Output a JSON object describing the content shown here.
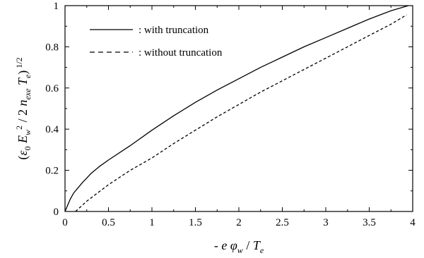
{
  "chart_data": {
    "type": "line",
    "xlabel": {
      "parts": [
        {
          "t": "- ",
          "style": "normal"
        },
        {
          "t": "e",
          "style": "italic"
        },
        {
          "t": " φ",
          "style": "italic"
        },
        {
          "t": "w",
          "style": "italic",
          "shift": "sub"
        },
        {
          "t": " / ",
          "style": "normal"
        },
        {
          "t": "T",
          "style": "italic"
        },
        {
          "t": "e",
          "style": "italic",
          "shift": "sub"
        }
      ]
    },
    "ylabel": {
      "parts": [
        {
          "t": "(",
          "style": "normal"
        },
        {
          "t": "ε",
          "style": "italic"
        },
        {
          "t": "0",
          "style": "normal",
          "shift": "sub"
        },
        {
          "t": " E",
          "style": "italic"
        },
        {
          "t": "w",
          "style": "italic",
          "shift": "sub"
        },
        {
          "t": "2",
          "style": "normal",
          "shift": "super"
        },
        {
          "t": " / 2 ",
          "style": "normal"
        },
        {
          "t": "n",
          "style": "italic"
        },
        {
          "t": "exe",
          "style": "italic",
          "shift": "sub"
        },
        {
          "t": " T",
          "style": "italic"
        },
        {
          "t": "e",
          "style": "italic",
          "shift": "sub"
        },
        {
          "t": ")",
          "style": "normal"
        },
        {
          "t": " 1/2",
          "style": "normal",
          "shift": "super"
        }
      ]
    },
    "xlim": [
      0,
      4
    ],
    "ylim": [
      0,
      1
    ],
    "xticks": [
      0,
      0.5,
      1,
      1.5,
      2,
      2.5,
      3,
      3.5,
      4
    ],
    "xtick_labels": [
      "0",
      "0.5",
      "1",
      "1.5",
      "2",
      "2.5",
      "3",
      "3.5",
      "4"
    ],
    "yticks": [
      0,
      0.2,
      0.4,
      0.6,
      0.8,
      1
    ],
    "ytick_labels": [
      "0",
      "0.2",
      "0.4",
      "0.6",
      "0.8",
      "1"
    ],
    "grid": false,
    "legend_position": "top-left",
    "series": [
      {
        "name": ": with truncation",
        "style": "solid",
        "color": "#000000",
        "x": [
          0,
          0.03,
          0.06,
          0.1,
          0.2,
          0.3,
          0.4,
          0.5,
          0.75,
          1.0,
          1.25,
          1.5,
          1.75,
          2.0,
          2.25,
          2.5,
          2.75,
          3.0,
          3.25,
          3.5,
          3.75,
          3.95
        ],
        "y": [
          0,
          0.03,
          0.06,
          0.09,
          0.14,
          0.185,
          0.22,
          0.25,
          0.32,
          0.395,
          0.465,
          0.53,
          0.59,
          0.645,
          0.7,
          0.75,
          0.8,
          0.845,
          0.89,
          0.935,
          0.975,
          1.0
        ]
      },
      {
        "name": ": without truncation",
        "style": "dashed",
        "color": "#000000",
        "x": [
          0.12,
          0.25,
          0.5,
          0.75,
          1.0,
          1.25,
          1.5,
          1.75,
          2.0,
          2.25,
          2.5,
          2.75,
          3.0,
          3.25,
          3.5,
          3.75,
          3.93
        ],
        "y": [
          0,
          0.05,
          0.13,
          0.2,
          0.26,
          0.33,
          0.395,
          0.46,
          0.52,
          0.58,
          0.635,
          0.69,
          0.745,
          0.8,
          0.855,
          0.91,
          0.955
        ]
      }
    ]
  }
}
